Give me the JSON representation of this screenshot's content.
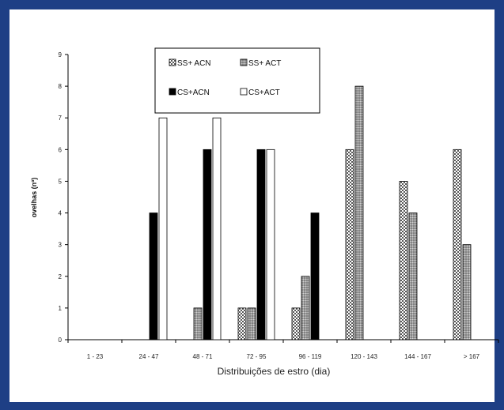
{
  "chart_data": {
    "type": "bar",
    "title": "",
    "xlabel": "Distribuições de estro (dia)",
    "ylabel": "ovelhas (nº)",
    "ylim": [
      0,
      9
    ],
    "yticks": [
      "0",
      "1",
      "2",
      "3",
      "4",
      "5",
      "6",
      "7",
      "8",
      "9"
    ],
    "categories": [
      "1 - 23",
      "24 - 47",
      "48 - 71",
      "72 - 95",
      "96 - 119",
      "120 - 143",
      "144 - 167",
      "> 167"
    ],
    "series": [
      {
        "name": "SS+ ACN",
        "pattern": "dots",
        "values": [
          0,
          0,
          0,
          1,
          1,
          6,
          5,
          6
        ]
      },
      {
        "name": "SS+ ACT",
        "pattern": "grey",
        "values": [
          0,
          0,
          1,
          1,
          2,
          8,
          4,
          3
        ]
      },
      {
        "name": "CS+ACN",
        "pattern": "black",
        "values": [
          0,
          4,
          6,
          6,
          4,
          0,
          0,
          0
        ]
      },
      {
        "name": "CS+ACT",
        "pattern": "white",
        "values": [
          0,
          7,
          7,
          6,
          0,
          0,
          0,
          0
        ]
      }
    ],
    "legend_position": "top-center",
    "grid": false
  },
  "colors": {
    "frame": "#1e3f85",
    "black": "#000000",
    "grey": "#9a9a9a"
  }
}
